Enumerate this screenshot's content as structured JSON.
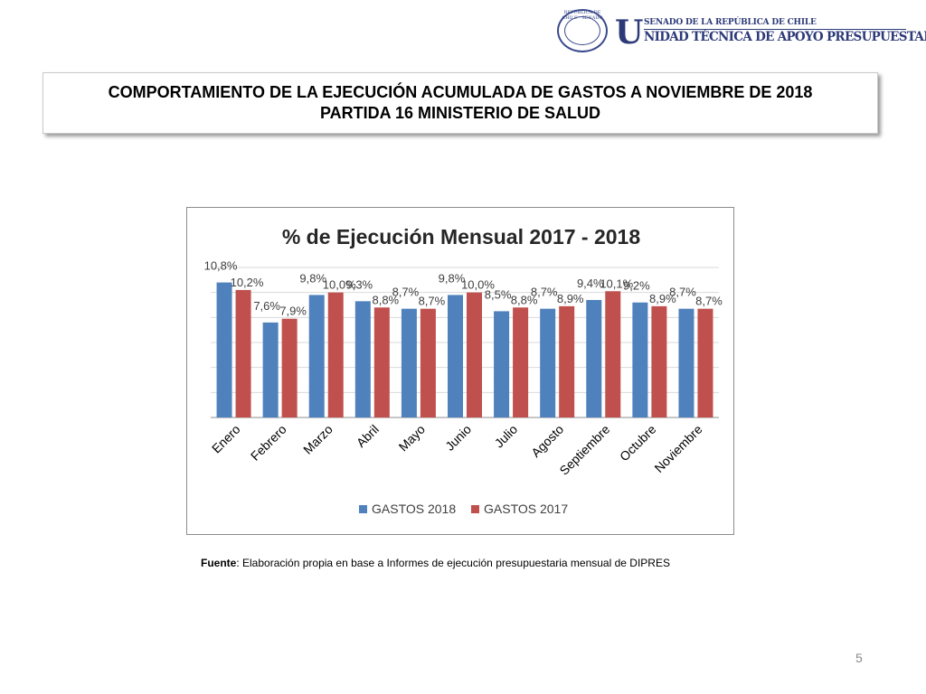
{
  "header": {
    "seal_text": "REPÚBLICA DE CHILE · SENADO",
    "logo_initial": "U",
    "logo_line1": "SENADO DE LA REPÚBLICA DE CHILE",
    "logo_line2": "NIDAD TÉCNICA DE APOYO PRESUPUESTARIO"
  },
  "title": {
    "line1": "COMPORTAMIENTO DE LA EJECUCIÓN ACUMULADA DE GASTOS A NOVIEMBRE DE 2018",
    "line2": "PARTIDA 16 MINISTERIO DE SALUD"
  },
  "chart_data": {
    "type": "bar",
    "title": "% de Ejecución Mensual 2017 - 2018",
    "categories": [
      "Enero",
      "Febrero",
      "Marzo",
      "Abril",
      "Mayo",
      "Junio",
      "Julio",
      "Agosto",
      "Septiembre",
      "Octubre",
      "Noviembre"
    ],
    "series": [
      {
        "name": "GASTOS 2018",
        "color": "#4f81bd",
        "values": [
          10.8,
          7.6,
          9.8,
          9.3,
          8.7,
          9.8,
          8.5,
          8.7,
          9.4,
          9.2,
          8.7
        ],
        "labels": [
          "10,8%",
          "7,6%",
          "9,8%",
          "9,3%",
          "8,7%",
          "9,8%",
          "8,5%",
          "8,7%",
          "9,4%",
          "9,2%",
          "8,7%"
        ]
      },
      {
        "name": "GASTOS 2017",
        "color": "#c0504d",
        "values": [
          10.2,
          7.9,
          10.0,
          8.8,
          8.7,
          10.0,
          8.8,
          8.9,
          10.1,
          8.9,
          8.7
        ],
        "labels": [
          "10,2%",
          "7,9%",
          "10,0%",
          "8,8%",
          "8,7%",
          "10,0%",
          "8,8%",
          "8,9%",
          "10,1%",
          "8,9%",
          "8,7%"
        ]
      }
    ],
    "ylim": [
      0,
      12
    ],
    "grid": true,
    "legend": "bottom"
  },
  "source": {
    "label": "Fuente",
    "text": ": Elaboración propia en base  a Informes de ejecución presupuestaria mensual de DIPRES"
  },
  "page_number": "5"
}
